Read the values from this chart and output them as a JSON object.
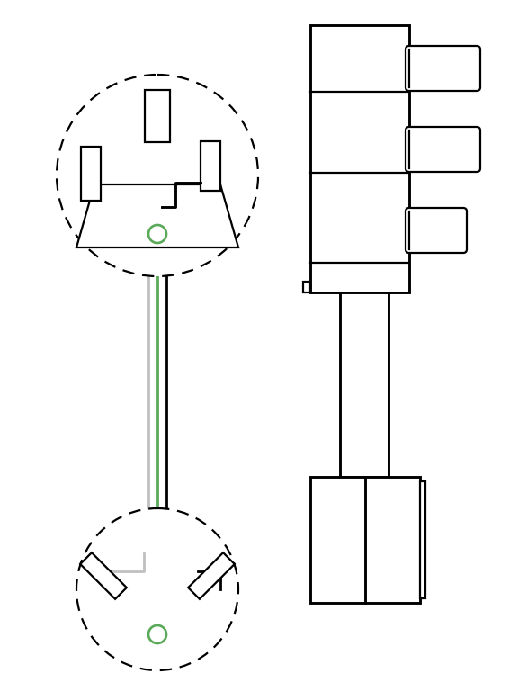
{
  "bg_color": "#ffffff",
  "line_color": "#000000",
  "green_color": "#5aaa5a",
  "gray_color": "#c0c0c0",
  "fig_width": 5.76,
  "fig_height": 7.68,
  "lw": 1.6
}
